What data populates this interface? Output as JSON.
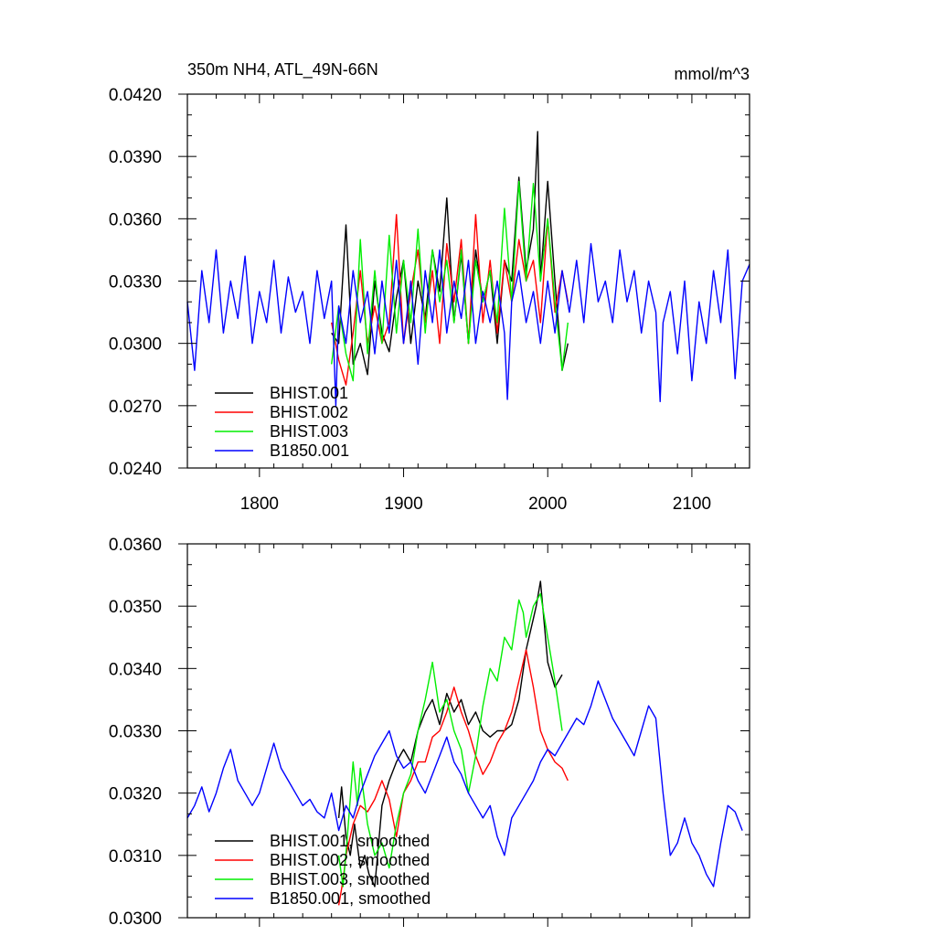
{
  "colors": {
    "BHIST.001": "#000000",
    "BHIST.002": "#ff0000",
    "BHIST.003": "#00ee00",
    "B1850.001": "#0000ff"
  },
  "chart_data": [
    {
      "type": "line",
      "title": "350m NH4, ATL_49N-66N",
      "units": "mmol/m^3",
      "xlim": [
        1750,
        2140
      ],
      "ylim": [
        0.024,
        0.042
      ],
      "xticks": [
        1800,
        1900,
        2000,
        2100
      ],
      "xtick_labels": [
        "1800",
        "1900",
        "2000",
        "2100"
      ],
      "yticks": [
        0.024,
        0.027,
        0.03,
        0.033,
        0.036,
        0.039,
        0.042
      ],
      "ytick_labels": [
        "0.0240",
        "0.0270",
        "0.0300",
        "0.0330",
        "0.0360",
        "0.0390",
        "0.0420"
      ],
      "legend_position": "bottom-left",
      "grid": false,
      "series": [
        {
          "name": "BHIST.001",
          "x": [
            1850,
            1855,
            1860,
            1865,
            1870,
            1875,
            1880,
            1885,
            1890,
            1895,
            1900,
            1905,
            1910,
            1915,
            1920,
            1925,
            1930,
            1935,
            1940,
            1945,
            1950,
            1955,
            1960,
            1965,
            1970,
            1975,
            1980,
            1985,
            1990,
            1993,
            1995,
            2000,
            2005,
            2010,
            2014
          ],
          "y": [
            0.0305,
            0.03,
            0.0357,
            0.029,
            0.03,
            0.0285,
            0.033,
            0.0305,
            0.0296,
            0.0322,
            0.034,
            0.03,
            0.033,
            0.0312,
            0.0345,
            0.0325,
            0.037,
            0.031,
            0.0343,
            0.03,
            0.0345,
            0.032,
            0.0335,
            0.03,
            0.034,
            0.033,
            0.038,
            0.0335,
            0.0355,
            0.0402,
            0.033,
            0.0378,
            0.033,
            0.0287,
            0.03
          ]
        },
        {
          "name": "BHIST.002",
          "x": [
            1850,
            1855,
            1860,
            1865,
            1870,
            1875,
            1880,
            1885,
            1890,
            1895,
            1900,
            1905,
            1910,
            1915,
            1920,
            1925,
            1930,
            1935,
            1940,
            1945,
            1950,
            1955,
            1960,
            1965,
            1970,
            1975,
            1980,
            1985,
            1990,
            1995,
            2000,
            2005,
            2010,
            2014
          ],
          "y": [
            0.031,
            0.0292,
            0.028,
            0.0305,
            0.0335,
            0.03,
            0.0318,
            0.03,
            0.031,
            0.0362,
            0.03,
            0.0325,
            0.0345,
            0.031,
            0.0335,
            0.03,
            0.0348,
            0.032,
            0.035,
            0.03,
            0.0362,
            0.031,
            0.034,
            0.0305,
            0.034,
            0.032,
            0.035,
            0.033,
            0.034,
            0.031,
            0.036,
            0.0315,
            0.0335,
            0.032
          ]
        },
        {
          "name": "BHIST.003",
          "x": [
            1850,
            1855,
            1860,
            1865,
            1870,
            1875,
            1880,
            1885,
            1890,
            1895,
            1900,
            1905,
            1910,
            1915,
            1920,
            1925,
            1930,
            1935,
            1940,
            1945,
            1950,
            1955,
            1960,
            1965,
            1970,
            1975,
            1980,
            1985,
            1990,
            1995,
            2000,
            2005,
            2010,
            2014
          ],
          "y": [
            0.029,
            0.0318,
            0.0295,
            0.0282,
            0.035,
            0.0295,
            0.0335,
            0.03,
            0.0352,
            0.0305,
            0.034,
            0.031,
            0.0355,
            0.0305,
            0.0345,
            0.032,
            0.034,
            0.031,
            0.0345,
            0.03,
            0.034,
            0.032,
            0.0335,
            0.031,
            0.0365,
            0.032,
            0.0378,
            0.033,
            0.0377,
            0.033,
            0.036,
            0.032,
            0.0287,
            0.031
          ]
        },
        {
          "name": "B1850.001",
          "x": [
            1750,
            1755,
            1760,
            1765,
            1770,
            1775,
            1780,
            1785,
            1790,
            1795,
            1800,
            1805,
            1810,
            1815,
            1820,
            1825,
            1830,
            1835,
            1840,
            1845,
            1850,
            1853,
            1855,
            1860,
            1865,
            1870,
            1875,
            1880,
            1885,
            1890,
            1895,
            1900,
            1905,
            1910,
            1915,
            1920,
            1925,
            1930,
            1935,
            1940,
            1945,
            1950,
            1955,
            1960,
            1965,
            1970,
            1972,
            1975,
            1980,
            1985,
            1990,
            1995,
            2000,
            2005,
            2010,
            2015,
            2020,
            2025,
            2030,
            2035,
            2040,
            2045,
            2050,
            2055,
            2060,
            2065,
            2070,
            2075,
            2078,
            2080,
            2085,
            2090,
            2095,
            2100,
            2105,
            2110,
            2115,
            2120,
            2125,
            2130,
            2135,
            2140
          ],
          "y": [
            0.032,
            0.0287,
            0.0335,
            0.031,
            0.0345,
            0.0305,
            0.033,
            0.0312,
            0.0342,
            0.03,
            0.0325,
            0.031,
            0.034,
            0.0305,
            0.0332,
            0.0315,
            0.0325,
            0.03,
            0.0335,
            0.0312,
            0.033,
            0.027,
            0.0318,
            0.03,
            0.0335,
            0.031,
            0.0325,
            0.0295,
            0.033,
            0.0305,
            0.034,
            0.03,
            0.033,
            0.029,
            0.0335,
            0.031,
            0.0345,
            0.0305,
            0.033,
            0.0312,
            0.034,
            0.03,
            0.0325,
            0.031,
            0.033,
            0.0305,
            0.0273,
            0.032,
            0.0335,
            0.031,
            0.0325,
            0.03,
            0.033,
            0.0305,
            0.0335,
            0.0315,
            0.034,
            0.031,
            0.0348,
            0.032,
            0.033,
            0.031,
            0.0345,
            0.032,
            0.0335,
            0.0305,
            0.033,
            0.0315,
            0.0272,
            0.031,
            0.0325,
            0.0295,
            0.033,
            0.0282,
            0.032,
            0.03,
            0.0335,
            0.031,
            0.0345,
            0.0283,
            0.033,
            0.0338
          ]
        }
      ]
    },
    {
      "type": "line",
      "title": "",
      "units": "",
      "xlim": [
        1750,
        2140
      ],
      "ylim": [
        0.03,
        0.036
      ],
      "xticks": [
        1800,
        1900,
        2000,
        2100
      ],
      "xtick_labels": [
        "",
        "",
        "",
        ""
      ],
      "yticks": [
        0.03,
        0.031,
        0.032,
        0.033,
        0.034,
        0.035,
        0.036
      ],
      "ytick_labels": [
        "0.0300",
        "0.0310",
        "0.0320",
        "0.0330",
        "0.0340",
        "0.0350",
        "0.0360"
      ],
      "legend_position": "bottom-left",
      "grid": false,
      "series": [
        {
          "name": "BHIST.001, smoothed",
          "color_key": "BHIST.001",
          "x": [
            1855,
            1857,
            1860,
            1863,
            1866,
            1870,
            1873,
            1876,
            1880,
            1885,
            1890,
            1895,
            1900,
            1905,
            1910,
            1915,
            1920,
            1925,
            1930,
            1935,
            1940,
            1945,
            1950,
            1955,
            1960,
            1965,
            1970,
            1975,
            1980,
            1985,
            1990,
            1992,
            1995,
            2000,
            2005,
            2010
          ],
          "y": [
            0.0316,
            0.0321,
            0.0313,
            0.031,
            0.0315,
            0.0308,
            0.031,
            0.0307,
            0.0305,
            0.0318,
            0.0322,
            0.0325,
            0.0327,
            0.0325,
            0.033,
            0.0333,
            0.0335,
            0.0331,
            0.0336,
            0.0333,
            0.0335,
            0.0331,
            0.0333,
            0.033,
            0.0329,
            0.033,
            0.033,
            0.0331,
            0.0335,
            0.0343,
            0.0348,
            0.035,
            0.0354,
            0.0341,
            0.0337,
            0.0339
          ]
        },
        {
          "name": "BHIST.002, smoothed",
          "color_key": "BHIST.002",
          "x": [
            1855,
            1858,
            1860,
            1865,
            1870,
            1875,
            1880,
            1885,
            1890,
            1895,
            1900,
            1905,
            1910,
            1915,
            1920,
            1925,
            1930,
            1935,
            1940,
            1945,
            1950,
            1955,
            1960,
            1965,
            1970,
            1975,
            1980,
            1985,
            1990,
            1995,
            2000,
            2005,
            2010,
            2014
          ],
          "y": [
            0.0302,
            0.0306,
            0.031,
            0.0315,
            0.0318,
            0.0317,
            0.0319,
            0.0322,
            0.0319,
            0.0313,
            0.032,
            0.0322,
            0.0325,
            0.0325,
            0.0329,
            0.033,
            0.0333,
            0.0337,
            0.0333,
            0.033,
            0.0326,
            0.0323,
            0.0325,
            0.0328,
            0.033,
            0.0333,
            0.0338,
            0.0343,
            0.0337,
            0.033,
            0.0327,
            0.0325,
            0.0324,
            0.0322
          ]
        },
        {
          "name": "BHIST.003, smoothed",
          "color_key": "BHIST.003",
          "x": [
            1855,
            1858,
            1861,
            1865,
            1868,
            1870,
            1875,
            1880,
            1885,
            1890,
            1895,
            1898,
            1900,
            1905,
            1910,
            1915,
            1920,
            1925,
            1930,
            1935,
            1940,
            1945,
            1950,
            1955,
            1960,
            1965,
            1970,
            1975,
            1980,
            1983,
            1985,
            1990,
            1995,
            2000,
            2005,
            2010
          ],
          "y": [
            0.031,
            0.0305,
            0.0313,
            0.0325,
            0.0318,
            0.0324,
            0.0315,
            0.031,
            0.0312,
            0.0308,
            0.0315,
            0.0318,
            0.032,
            0.0323,
            0.033,
            0.0335,
            0.0341,
            0.0333,
            0.0335,
            0.033,
            0.0327,
            0.032,
            0.0326,
            0.0334,
            0.034,
            0.0338,
            0.0345,
            0.0343,
            0.0351,
            0.0349,
            0.0345,
            0.035,
            0.0352,
            0.0345,
            0.0338,
            0.033
          ]
        },
        {
          "name": "B1850.001, smoothed",
          "color_key": "B1850.001",
          "x": [
            1750,
            1755,
            1760,
            1765,
            1770,
            1775,
            1780,
            1785,
            1790,
            1795,
            1800,
            1805,
            1810,
            1815,
            1820,
            1825,
            1830,
            1835,
            1840,
            1845,
            1850,
            1855,
            1860,
            1865,
            1870,
            1875,
            1880,
            1885,
            1890,
            1895,
            1900,
            1905,
            1910,
            1915,
            1920,
            1925,
            1930,
            1935,
            1940,
            1945,
            1950,
            1955,
            1960,
            1965,
            1970,
            1975,
            1980,
            1985,
            1990,
            1995,
            2000,
            2005,
            2010,
            2015,
            2020,
            2025,
            2030,
            2035,
            2040,
            2045,
            2050,
            2055,
            2060,
            2065,
            2070,
            2075,
            2080,
            2085,
            2090,
            2095,
            2100,
            2105,
            2110,
            2115,
            2120,
            2125,
            2130,
            2135
          ],
          "y": [
            0.0316,
            0.0318,
            0.0321,
            0.0317,
            0.032,
            0.0324,
            0.0327,
            0.0322,
            0.032,
            0.0318,
            0.032,
            0.0324,
            0.0328,
            0.0324,
            0.0322,
            0.032,
            0.0318,
            0.0319,
            0.0317,
            0.0316,
            0.032,
            0.0314,
            0.0318,
            0.0316,
            0.032,
            0.0323,
            0.0326,
            0.0328,
            0.033,
            0.0326,
            0.0324,
            0.0325,
            0.0322,
            0.032,
            0.0323,
            0.0326,
            0.0329,
            0.0325,
            0.0323,
            0.032,
            0.0318,
            0.0316,
            0.0318,
            0.0313,
            0.031,
            0.0316,
            0.0318,
            0.032,
            0.0322,
            0.0325,
            0.0327,
            0.0326,
            0.0328,
            0.033,
            0.0332,
            0.0331,
            0.0334,
            0.0338,
            0.0335,
            0.0332,
            0.033,
            0.0328,
            0.0326,
            0.033,
            0.0334,
            0.0332,
            0.032,
            0.031,
            0.0312,
            0.0316,
            0.0312,
            0.031,
            0.0307,
            0.0305,
            0.0312,
            0.0318,
            0.0317,
            0.0314
          ]
        }
      ]
    }
  ]
}
